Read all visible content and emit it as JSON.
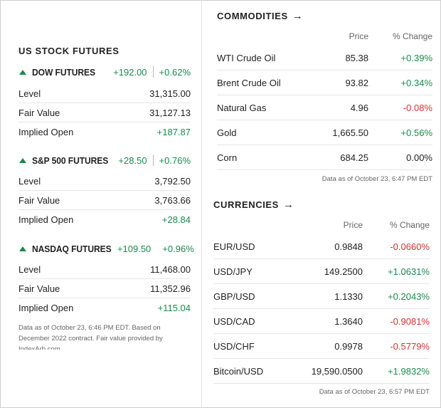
{
  "us_futures": {
    "title": "US STOCK FUTURES",
    "blocks": [
      {
        "name": "DOW FUTURES",
        "change": "+192.00",
        "pct": "+0.62%",
        "rows": [
          {
            "label": "Level",
            "value": "31,315.00"
          },
          {
            "label": "Fair Value",
            "value": "31,127.13"
          },
          {
            "label": "Implied Open",
            "value": "+187.87"
          }
        ]
      },
      {
        "name": "S&P 500 FUTURES",
        "change": "+28.50",
        "pct": "+0.76%",
        "rows": [
          {
            "label": "Level",
            "value": "3,792.50"
          },
          {
            "label": "Fair Value",
            "value": "3,763.66"
          },
          {
            "label": "Implied Open",
            "value": "+28.84"
          }
        ]
      },
      {
        "name": "NASDAQ FUTURES",
        "change": "+109.50",
        "pct": "+0.96%",
        "rows": [
          {
            "label": "Level",
            "value": "11,468.00"
          },
          {
            "label": "Fair Value",
            "value": "11,352.96"
          },
          {
            "label": "Implied Open",
            "value": "+115.04"
          }
        ]
      }
    ],
    "note": "Data as of October 23, 6:46 PM EDT. Based on December 2022 contract. Fair value provided by IndexArb.com"
  },
  "commodities": {
    "title": "COMMODITIES",
    "col_price": "Price",
    "col_change": "% Change",
    "rows": [
      {
        "name": "WTI Crude Oil",
        "price": "85.38",
        "change": "+0.39%"
      },
      {
        "name": "Brent Crude Oil",
        "price": "93.82",
        "change": "+0.34%"
      },
      {
        "name": "Natural Gas",
        "price": "4.96",
        "change": "-0.08%"
      },
      {
        "name": "Gold",
        "price": "1,665.50",
        "change": "+0.56%"
      },
      {
        "name": "Corn",
        "price": "684.25",
        "change": "0.00%"
      }
    ],
    "note": "Data as of October 23, 6:47 PM EDT"
  },
  "currencies": {
    "title": "CURRENCIES",
    "col_price": "Price",
    "col_change": "% Change",
    "rows": [
      {
        "name": "EUR/USD",
        "price": "0.9848",
        "change": "-0.0660%"
      },
      {
        "name": "USD/JPY",
        "price": "149.2500",
        "change": "+1.0631%"
      },
      {
        "name": "GBP/USD",
        "price": "1.1330",
        "change": "+0.2043%"
      },
      {
        "name": "USD/CAD",
        "price": "1.3640",
        "change": "-0.9081%"
      },
      {
        "name": "USD/CHF",
        "price": "0.9978",
        "change": "-0.5779%"
      },
      {
        "name": "Bitcoin/USD",
        "price": "19,590.0500",
        "change": "+1.9832%"
      }
    ],
    "note": "Data as of October 23, 6:57 PM EDT"
  },
  "icons": {
    "up": "triangle-up-icon",
    "link": "arrow-right-icon"
  },
  "colors": {
    "positive": "#1a8a4e",
    "negative": "#d6332f"
  }
}
